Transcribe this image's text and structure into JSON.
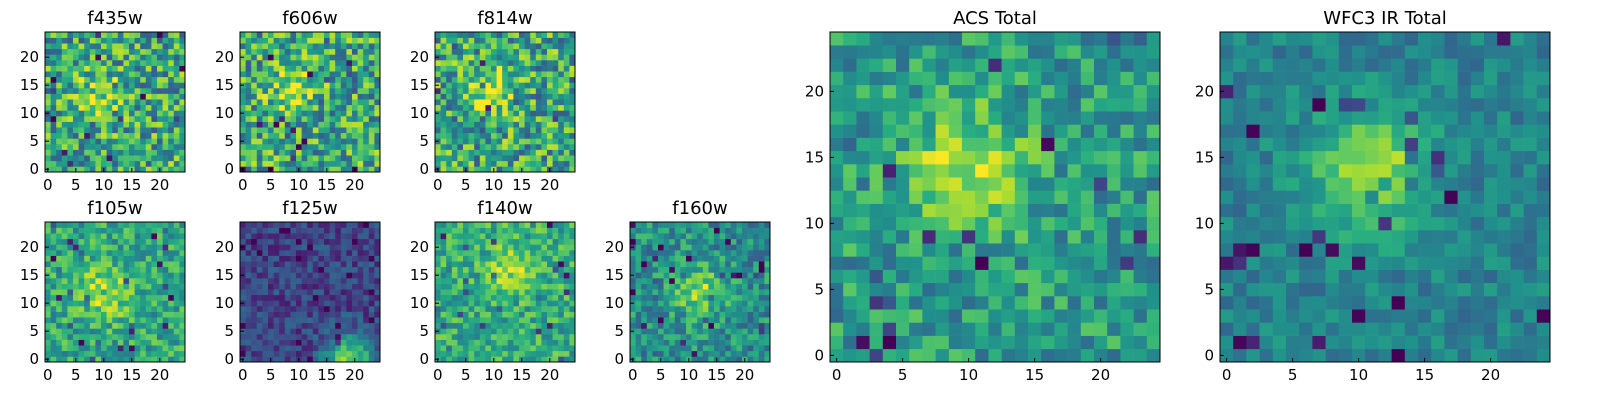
{
  "figure": {
    "panels": [
      {
        "id": "f435w",
        "title": "f435w"
      },
      {
        "id": "f606w",
        "title": "f606w"
      },
      {
        "id": "f814w",
        "title": "f814w"
      },
      {
        "id": "f105w",
        "title": "f105w"
      },
      {
        "id": "f125w",
        "title": "f125w"
      },
      {
        "id": "f140w",
        "title": "f140w"
      },
      {
        "id": "f160w",
        "title": "f160w"
      },
      {
        "id": "acs-total",
        "title": "ACS Total"
      },
      {
        "id": "wfc3-ir-total",
        "title": "WFC3 IR Total"
      }
    ]
  },
  "chart_data": [
    {
      "type": "heatmap",
      "title": "f435w",
      "grid_size": [
        25,
        25
      ],
      "xlim": [
        0,
        25
      ],
      "ylim": [
        0,
        25
      ],
      "xticks": [
        0,
        5,
        10,
        15,
        20
      ],
      "yticks": [
        0,
        5,
        10,
        15,
        20
      ],
      "colormap": "viridis",
      "peak": {
        "x": 9,
        "y": 13,
        "strength": 0.25
      },
      "noise": "high"
    },
    {
      "type": "heatmap",
      "title": "f606w",
      "grid_size": [
        25,
        25
      ],
      "xlim": [
        0,
        25
      ],
      "ylim": [
        0,
        25
      ],
      "xticks": [
        0,
        5,
        10,
        15,
        20
      ],
      "yticks": [
        0,
        5,
        10,
        15,
        20
      ],
      "colormap": "viridis",
      "peak": {
        "x": 9,
        "y": 14,
        "strength": 0.3
      },
      "noise": "high"
    },
    {
      "type": "heatmap",
      "title": "f814w",
      "grid_size": [
        25,
        25
      ],
      "xlim": [
        0,
        25
      ],
      "ylim": [
        0,
        25
      ],
      "xticks": [
        0,
        5,
        10,
        15,
        20
      ],
      "yticks": [
        0,
        5,
        10,
        15,
        20
      ],
      "colormap": "viridis",
      "peak": {
        "x": 9,
        "y": 14,
        "strength": 0.3
      },
      "noise": "high"
    },
    {
      "type": "heatmap",
      "title": "f105w",
      "grid_size": [
        25,
        25
      ],
      "xlim": [
        0,
        25
      ],
      "ylim": [
        0,
        25
      ],
      "xticks": [
        0,
        5,
        10,
        15,
        20
      ],
      "yticks": [
        0,
        5,
        10,
        15,
        20
      ],
      "colormap": "viridis",
      "peak": {
        "x": 10,
        "y": 12,
        "strength": 0.35
      },
      "noise": "medium",
      "base": 0.6
    },
    {
      "type": "heatmap",
      "title": "f125w",
      "grid_size": [
        25,
        25
      ],
      "xlim": [
        0,
        25
      ],
      "ylim": [
        0,
        25
      ],
      "xticks": [
        0,
        5,
        10,
        15,
        20
      ],
      "yticks": [
        0,
        5,
        10,
        15,
        20
      ],
      "colormap": "viridis",
      "peak": {
        "x": 19,
        "y": 0,
        "strength": 0.6
      },
      "noise": "low",
      "base": 0.22
    },
    {
      "type": "heatmap",
      "title": "f140w",
      "grid_size": [
        25,
        25
      ],
      "xlim": [
        0,
        25
      ],
      "ylim": [
        0,
        25
      ],
      "xticks": [
        0,
        5,
        10,
        15,
        20
      ],
      "yticks": [
        0,
        5,
        10,
        15,
        20
      ],
      "colormap": "viridis",
      "peak": {
        "x": 13,
        "y": 16,
        "strength": 0.25
      },
      "noise": "medium",
      "base": 0.62
    },
    {
      "type": "heatmap",
      "title": "f160w",
      "grid_size": [
        25,
        25
      ],
      "xlim": [
        0,
        25
      ],
      "ylim": [
        0,
        25
      ],
      "xticks": [
        0,
        5,
        10,
        15,
        20
      ],
      "yticks": [
        0,
        5,
        10,
        15,
        20
      ],
      "colormap": "viridis",
      "peak": {
        "x": 12,
        "y": 12,
        "strength": 0.35
      },
      "noise": "medium",
      "base": 0.5
    },
    {
      "type": "heatmap",
      "title": "ACS Total",
      "grid_size": [
        25,
        25
      ],
      "xlim": [
        0,
        25
      ],
      "ylim": [
        0,
        25
      ],
      "xticks": [
        0,
        5,
        10,
        15,
        20
      ],
      "yticks": [
        0,
        5,
        10,
        15,
        20
      ],
      "colormap": "viridis",
      "peak": {
        "x": 10,
        "y": 14,
        "strength": 0.4
      },
      "noise": "medium",
      "base": 0.55
    },
    {
      "type": "heatmap",
      "title": "WFC3 IR Total",
      "grid_size": [
        25,
        25
      ],
      "xlim": [
        0,
        25
      ],
      "ylim": [
        0,
        25
      ],
      "xticks": [
        0,
        5,
        10,
        15,
        20
      ],
      "yticks": [
        0,
        5,
        10,
        15,
        20
      ],
      "colormap": "viridis",
      "peak": {
        "x": 11,
        "y": 14,
        "strength": 0.45
      },
      "noise": "low",
      "base": 0.45
    }
  ]
}
